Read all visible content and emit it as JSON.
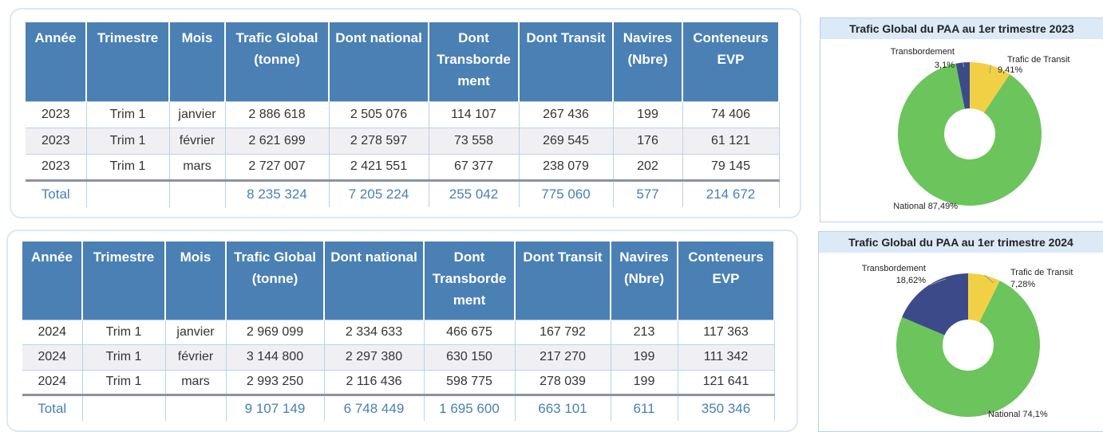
{
  "tables": [
    {
      "columns": [
        "Année",
        "Trimestre",
        "Mois",
        "Trafic Global (tonne)",
        "Dont national",
        "Dont Transbordement",
        "Dont Transit",
        "Navires (Nbre)",
        "Conteneurs EVP"
      ],
      "rows": [
        [
          "2023",
          "Trim 1",
          "janvier",
          "2 886 618",
          "2 505 076",
          "114 107",
          "267 436",
          "199",
          "74 406"
        ],
        [
          "2023",
          "Trim 1",
          "février",
          "2 621 699",
          "2 278 597",
          "73 558",
          "269 545",
          "176",
          "61 121"
        ],
        [
          "2023",
          "Trim 1",
          "mars",
          "2 727 007",
          "2 421 551",
          "67 377",
          "238 079",
          "202",
          "79 145"
        ]
      ],
      "total": {
        "label": "Total",
        "values": [
          "8 235 324",
          "7 205 224",
          "255 042",
          "775 060",
          "577",
          "214 672"
        ]
      }
    },
    {
      "columns": [
        "Année",
        "Trimestre",
        "Mois",
        "Trafic Global (tonne)",
        "Dont national",
        "Dont Transbordement",
        "Dont Transit",
        "Navires (Nbre)",
        "Conteneurs EVP"
      ],
      "rows": [
        [
          "2024",
          "Trim 1",
          "janvier",
          "2 969 099",
          "2 334 633",
          "466 675",
          "167 792",
          "213",
          "117 363"
        ],
        [
          "2024",
          "Trim 1",
          "février",
          "3 144 800",
          "2 297 380",
          "630 150",
          "217 270",
          "199",
          "111 342"
        ],
        [
          "2024",
          "Trim 1",
          "mars",
          "2 993 250",
          "2 116 436",
          "598 775",
          "278 039",
          "199",
          "121 641"
        ]
      ],
      "total": {
        "label": "Total",
        "values": [
          "9 107 149",
          "6 748 449",
          "1 695 600",
          "663 101",
          "611",
          "350 346"
        ]
      }
    }
  ],
  "chart_data": [
    {
      "type": "donut",
      "title": "Trafic Global du PAA au 1er trimestre 2023",
      "categories": [
        "Trafic de Transit",
        "National",
        "Transbordement"
      ],
      "values": [
        9.41,
        87.49,
        3.1
      ],
      "value_labels": [
        "9,41%",
        "87,49%",
        "3,1%"
      ],
      "colors": [
        "#f2d045",
        "#6cc45c",
        "#3d4a8a"
      ]
    },
    {
      "type": "donut",
      "title": "Trafic Global du PAA au 1er trimestre 2024",
      "categories": [
        "Trafic de Transit",
        "National",
        "Transbordement"
      ],
      "values": [
        7.28,
        74.1,
        18.62
      ],
      "value_labels": [
        "7,28%",
        "74,1%",
        "18,62%"
      ],
      "colors": [
        "#f2d045",
        "#6cc45c",
        "#3d4a8a"
      ]
    }
  ]
}
